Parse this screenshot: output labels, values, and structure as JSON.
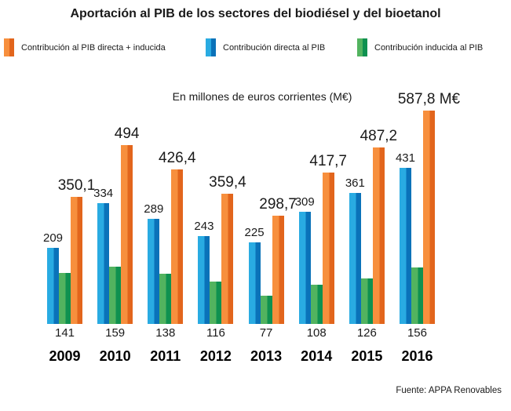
{
  "title": "Aportación al PIB de los sectores del biodiésel y del bioetanol",
  "subtitle": "En millones de euros corrientes (M€)",
  "source": "Fuente: APPA Renovables",
  "legend": [
    {
      "label": "Contribución al PIB directa + inducida",
      "color_light": "#F78F3D",
      "color_dark": "#E2651C"
    },
    {
      "label": "Contribución directa al PIB",
      "color_light": "#29ABE2",
      "color_dark": "#0A72B9"
    },
    {
      "label": "Contribución inducida al PIB",
      "color_light": "#52B35F",
      "color_dark": "#0F9150"
    }
  ],
  "chart_data": {
    "type": "bar",
    "title": "Aportación al PIB de los sectores del biodiésel y del bioetanol",
    "subtitle": "En millones de euros corrientes (M€)",
    "unit": "M€",
    "categories": [
      "2009",
      "2010",
      "2011",
      "2012",
      "2013",
      "2014",
      "2015",
      "2016"
    ],
    "series": [
      {
        "name": "Contribución directa al PIB",
        "role": "directa",
        "color_light": "#29ABE2",
        "color_dark": "#0A72B9",
        "values": [
          209,
          334,
          289,
          243,
          225,
          309,
          361,
          431
        ],
        "labels": [
          "209",
          "334",
          "289",
          "243",
          "225",
          "309",
          "361",
          "431"
        ],
        "label_position": "above-bar"
      },
      {
        "name": "Contribución inducida al PIB",
        "role": "inducida",
        "color_light": "#52B35F",
        "color_dark": "#0F9150",
        "values": [
          141,
          159,
          138,
          116,
          77,
          108,
          126,
          156
        ],
        "labels": [
          "141",
          "159",
          "138",
          "116",
          "77",
          "108",
          "126",
          "156"
        ],
        "label_position": "below-axis"
      },
      {
        "name": "Contribución al PIB directa + inducida",
        "role": "directa-mas-inducida",
        "color_light": "#F78F3D",
        "color_dark": "#E2651C",
        "values": [
          350.1,
          494,
          426.4,
          359.4,
          298.7,
          417.7,
          487.2,
          587.8
        ],
        "labels": [
          "350,1",
          "494",
          "426,4",
          "359,4",
          "298,7",
          "417,7",
          "487,2",
          "587,8 M€"
        ],
        "label_position": "above-bar"
      }
    ],
    "ylim": [
      0,
      600
    ],
    "grid": false,
    "axes_visible": false,
    "legend_position": "top",
    "source": "Fuente: APPA Renovables"
  }
}
